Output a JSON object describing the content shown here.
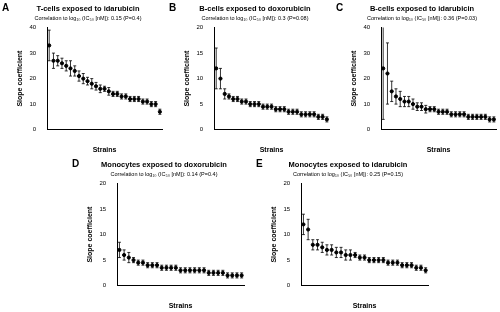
{
  "chart_data": [
    {
      "type": "scatter",
      "panel": "A",
      "title": "T-cells exposed to idarubicin",
      "subtitle": "Correlation to log₁₀ (IC₅₀ [nM]): 0.15 (P=0.4)",
      "x_label": "Strains",
      "y_label": "Slope coefficient",
      "categories": [
        null,
        null,
        null,
        null,
        null,
        null,
        null,
        null,
        null,
        null,
        null,
        null,
        null,
        null,
        null,
        null,
        null,
        null,
        null,
        null,
        null,
        null,
        null,
        null,
        null,
        null,
        null
      ],
      "values": [
        33,
        27,
        27,
        26,
        25,
        24,
        23,
        21,
        20,
        19,
        18,
        17,
        16,
        16,
        15,
        14,
        14,
        13,
        13,
        12,
        12,
        12,
        11,
        11,
        10,
        10,
        7
      ],
      "errors": [
        6,
        3,
        2,
        2,
        2,
        3,
        2,
        2,
        2,
        1.5,
        2,
        1.5,
        1.5,
        1,
        1.5,
        1,
        1,
        1,
        1,
        1,
        1,
        1,
        1,
        1,
        1,
        1,
        1
      ],
      "ylim": [
        0,
        40
      ],
      "yticks": [
        0,
        10,
        20,
        30,
        40
      ],
      "grid": false,
      "tick_labels": "y",
      "color": "#000000",
      "marker": "circle"
    },
    {
      "type": "scatter",
      "panel": "B",
      "title": "B-cells exposed to doxorubicin",
      "subtitle": "Correlation to log₁₀ (IC₅₀ [nM]): 0.3 (P=0.08)",
      "x_label": "Strains",
      "y_label": "Slope coefficient",
      "categories": [
        null,
        null,
        null,
        null,
        null,
        null,
        null,
        null,
        null,
        null,
        null,
        null,
        null,
        null,
        null,
        null,
        null,
        null,
        null,
        null,
        null,
        null,
        null,
        null,
        null,
        null,
        null
      ],
      "values": [
        12,
        10,
        7,
        6.5,
        6,
        6,
        5.5,
        5.5,
        5,
        5,
        5,
        4.5,
        4.5,
        4.5,
        4,
        4,
        4,
        3.5,
        3.5,
        3.5,
        3,
        3,
        3,
        3,
        2.5,
        2.5,
        2
      ],
      "errors": [
        4,
        2,
        1,
        0.5,
        0.5,
        0.5,
        0.5,
        0.5,
        0.5,
        0.5,
        0.5,
        0.5,
        0.5,
        0.5,
        0.5,
        0.5,
        0.5,
        0.5,
        0.5,
        0.5,
        0.5,
        0.5,
        0.5,
        0.5,
        0.5,
        0.5,
        0.5
      ],
      "ylim": [
        0,
        20
      ],
      "yticks": [
        0,
        5,
        10,
        15,
        20
      ],
      "grid": false,
      "tick_labels": "y",
      "color": "#000000",
      "marker": "circle"
    },
    {
      "type": "scatter",
      "panel": "C",
      "title": "B-cells exposed to idarubicin",
      "subtitle": "Correlation to log₁₀ (IC₅₀ [nM]): 0.36 (P=0.03)",
      "x_label": "Strains",
      "y_label": "Slope coefficient",
      "categories": [
        null,
        null,
        null,
        null,
        null,
        null,
        null,
        null,
        null,
        null,
        null,
        null,
        null,
        null,
        null,
        null,
        null,
        null,
        null,
        null,
        null,
        null,
        null,
        null,
        null,
        null,
        null
      ],
      "values": [
        24,
        22,
        15,
        13,
        12,
        11,
        11,
        10,
        9,
        9,
        8,
        8,
        8,
        7,
        7,
        7,
        6,
        6,
        6,
        6,
        5,
        5,
        5,
        5,
        5,
        4,
        4
      ],
      "errors": [
        20,
        12,
        4,
        3,
        3,
        2,
        2,
        2,
        1.5,
        1.5,
        1.5,
        1,
        1,
        1,
        1,
        1,
        1,
        1,
        1,
        1,
        1,
        1,
        1,
        1,
        1,
        1,
        1
      ],
      "ylim": [
        0,
        40
      ],
      "yticks": [
        0,
        10,
        20,
        30,
        40
      ],
      "grid": false,
      "tick_labels": "y",
      "color": "#000000",
      "marker": "circle"
    },
    {
      "type": "scatter",
      "panel": "D",
      "title": "Monocytes exposed to doxorubicin",
      "subtitle": "Correlation to log₁₀ (IC₅₀ [nM]): 0.14 (P=0.4)",
      "x_label": "Strains",
      "y_label": "Slope coefficient",
      "categories": [
        null,
        null,
        null,
        null,
        null,
        null,
        null,
        null,
        null,
        null,
        null,
        null,
        null,
        null,
        null,
        null,
        null,
        null,
        null,
        null,
        null,
        null,
        null,
        null,
        null,
        null,
        null
      ],
      "values": [
        7,
        6,
        5.5,
        5,
        4.5,
        4.5,
        4,
        4,
        4,
        3.5,
        3.5,
        3.5,
        3.5,
        3,
        3,
        3,
        3,
        3,
        3,
        2.5,
        2.5,
        2.5,
        2.5,
        2,
        2,
        2,
        2
      ],
      "errors": [
        1.5,
        1,
        1,
        0.5,
        0.5,
        0.5,
        0.5,
        0.5,
        0.5,
        0.5,
        0.5,
        0.5,
        0.5,
        0.5,
        0.5,
        0.5,
        0.5,
        0.5,
        0.5,
        0.5,
        0.5,
        0.5,
        0.5,
        0.5,
        0.5,
        0.5,
        0.5
      ],
      "ylim": [
        0,
        20
      ],
      "yticks": [
        0,
        5,
        10,
        15,
        20
      ],
      "grid": false,
      "tick_labels": "y",
      "color": "#000000",
      "marker": "circle"
    },
    {
      "type": "scatter",
      "panel": "E",
      "title": "Monocytes exposed to idarubicin",
      "subtitle": "Correlation to log₁₀ (IC₅₀ [nM]): 0.25 (P=0.15)",
      "x_label": "Strains",
      "y_label": "Slope coefficient",
      "categories": [
        null,
        null,
        null,
        null,
        null,
        null,
        null,
        null,
        null,
        null,
        null,
        null,
        null,
        null,
        null,
        null,
        null,
        null,
        null,
        null,
        null,
        null,
        null,
        null,
        null,
        null,
        null
      ],
      "values": [
        12,
        11,
        8,
        8,
        7.5,
        7,
        7,
        6.5,
        6.5,
        6,
        6,
        6,
        5.5,
        5.5,
        5,
        5,
        5,
        5,
        4.5,
        4.5,
        4.5,
        4,
        4,
        4,
        3.5,
        3.5,
        3
      ],
      "errors": [
        2,
        2,
        1,
        1,
        1,
        1,
        1,
        1,
        1,
        1,
        1,
        0.5,
        0.5,
        0.5,
        0.5,
        0.5,
        0.5,
        0.5,
        0.5,
        0.5,
        0.5,
        0.5,
        0.5,
        0.5,
        0.5,
        0.5,
        0.5
      ],
      "ylim": [
        0,
        20
      ],
      "yticks": [
        0,
        5,
        10,
        15,
        20
      ],
      "grid": false,
      "tick_labels": "y",
      "color": "#000000",
      "marker": "circle"
    }
  ]
}
